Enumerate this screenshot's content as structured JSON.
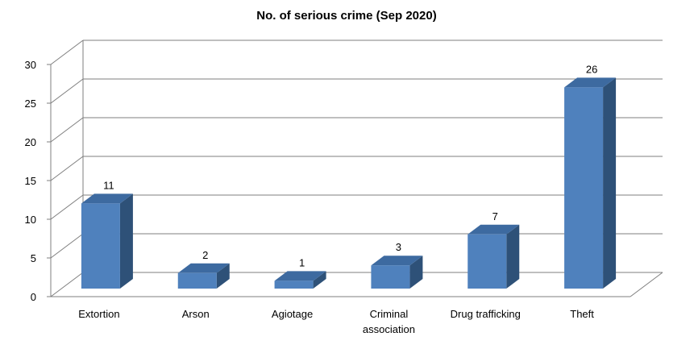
{
  "chart_data": {
    "type": "bar",
    "title": "No. of serious crime (Sep 2020)",
    "categories": [
      "Extortion",
      "Arson",
      "Agiotage",
      "Criminal\nassociation",
      "Drug trafficking",
      "Theft"
    ],
    "values": [
      11,
      2,
      1,
      3,
      7,
      26
    ],
    "ylim": [
      0,
      30
    ],
    "yticks": [
      0,
      5,
      10,
      15,
      20,
      25,
      30
    ],
    "grid": true,
    "three_d": true,
    "colors": {
      "bar_front": "#4f81bd",
      "bar_side": "#2e5178",
      "bar_top": "#3d6aa0",
      "grid": "#7f7f7f"
    }
  }
}
